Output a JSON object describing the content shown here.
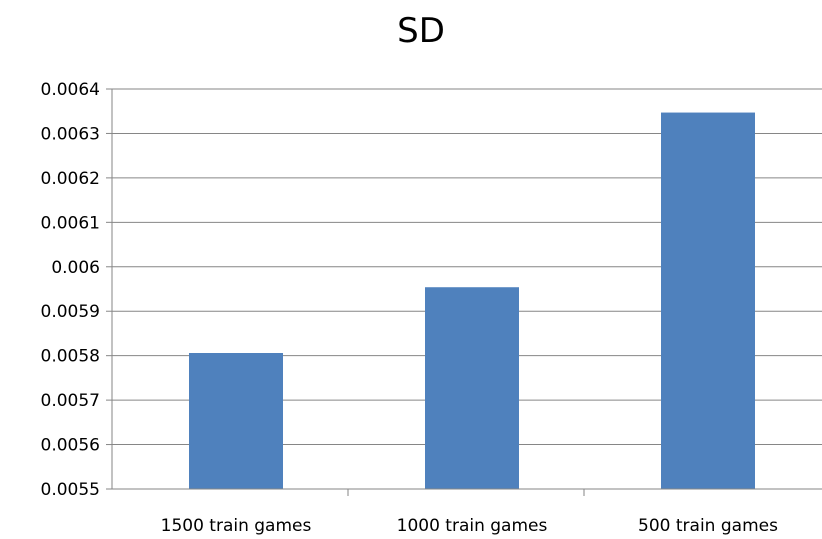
{
  "chart_data": {
    "type": "bar",
    "title": "SD",
    "categories": [
      "1500 train games",
      "1000 train games",
      "500 train games"
    ],
    "values": [
      0.005806,
      0.005954,
      0.006347
    ],
    "xlabel": "",
    "ylabel": "",
    "ylim": [
      0.0055,
      0.0064
    ],
    "yticks": [
      "0.0055",
      "0.0056",
      "0.0057",
      "0.0058",
      "0.0059",
      "0.006",
      "0.0061",
      "0.0062",
      "0.0063",
      "0.0064"
    ],
    "grid": true,
    "legend": "none",
    "bar_color": "#4f81bd",
    "grid_color": "#868686",
    "axis_color": "#868686"
  }
}
